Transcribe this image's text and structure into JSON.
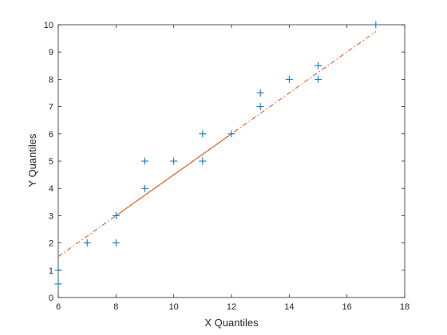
{
  "chart_data": {
    "type": "scatter",
    "title": "",
    "xlabel": "X Quantiles",
    "ylabel": "Y Quantiles",
    "xlim": [
      6,
      18
    ],
    "ylim": [
      0,
      10
    ],
    "xticks": [
      6,
      8,
      10,
      12,
      14,
      16,
      18
    ],
    "yticks": [
      0,
      1,
      2,
      3,
      4,
      5,
      6,
      7,
      8,
      9,
      10
    ],
    "grid": false,
    "colors": {
      "points": "#0072BD",
      "line": "#D95319",
      "axis": "#262626"
    },
    "series": [
      {
        "marker": "plus",
        "points": [
          {
            "x": 6,
            "y": 0.5
          },
          {
            "x": 6,
            "y": 1
          },
          {
            "x": 7,
            "y": 2
          },
          {
            "x": 8,
            "y": 2
          },
          {
            "x": 8,
            "y": 3
          },
          {
            "x": 9,
            "y": 4
          },
          {
            "x": 9,
            "y": 5
          },
          {
            "x": 10,
            "y": 5
          },
          {
            "x": 11,
            "y": 5
          },
          {
            "x": 11,
            "y": 6
          },
          {
            "x": 12,
            "y": 6
          },
          {
            "x": 13,
            "y": 7
          },
          {
            "x": 13,
            "y": 7.5
          },
          {
            "x": 14,
            "y": 8
          },
          {
            "x": 15,
            "y": 8
          },
          {
            "x": 15,
            "y": 8.5
          },
          {
            "x": 17,
            "y": 10
          }
        ]
      }
    ],
    "reference_line": {
      "solid_segment": [
        [
          8,
          3
        ],
        [
          12,
          6
        ]
      ],
      "full_extent": [
        [
          6,
          1.5
        ],
        [
          17,
          9.75
        ]
      ],
      "extension_style": "dash-dot"
    }
  }
}
